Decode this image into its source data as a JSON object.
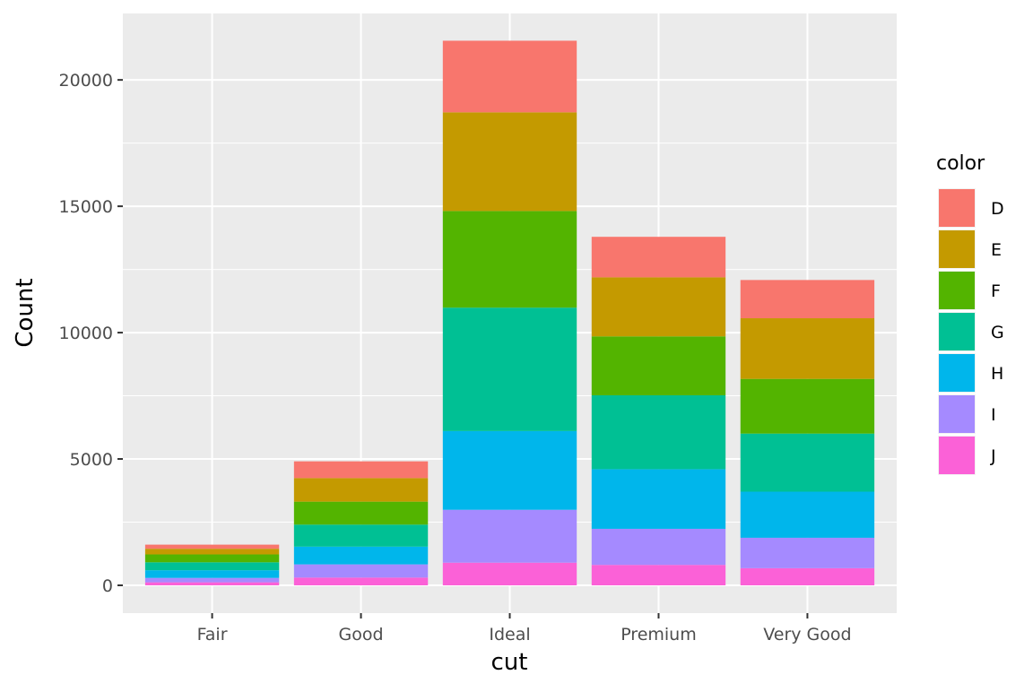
{
  "chart_data": {
    "type": "bar",
    "stacked": true,
    "title": "",
    "xlabel": "cut",
    "ylabel": "Count",
    "ylim": [
      -1100,
      22630
    ],
    "yticks": [
      0,
      5000,
      10000,
      15000,
      20000
    ],
    "ytick_labels": [
      "0",
      "5000",
      "10000",
      "15000",
      "20000"
    ],
    "categories": [
      "Fair",
      "Good",
      "Ideal",
      "Premium",
      "Very Good"
    ],
    "grid": true,
    "legend": {
      "title": "color",
      "placement": "right"
    },
    "series": [
      {
        "name": "D",
        "color": "#F8766D",
        "values": [
          163,
          662,
          2834,
          1603,
          1513
        ]
      },
      {
        "name": "E",
        "color": "#C49A00",
        "values": [
          224,
          933,
          3903,
          2337,
          2400
        ]
      },
      {
        "name": "F",
        "color": "#53B400",
        "values": [
          312,
          909,
          3826,
          2331,
          2164
        ]
      },
      {
        "name": "G",
        "color": "#00C094",
        "values": [
          314,
          871,
          4884,
          2924,
          2299
        ]
      },
      {
        "name": "H",
        "color": "#00B6EB",
        "values": [
          303,
          702,
          3115,
          2360,
          1824
        ]
      },
      {
        "name": "I",
        "color": "#A58AFF",
        "values": [
          175,
          522,
          2093,
          1428,
          1204
        ]
      },
      {
        "name": "J",
        "color": "#FB61D7",
        "values": [
          119,
          307,
          896,
          808,
          678
        ]
      }
    ]
  }
}
